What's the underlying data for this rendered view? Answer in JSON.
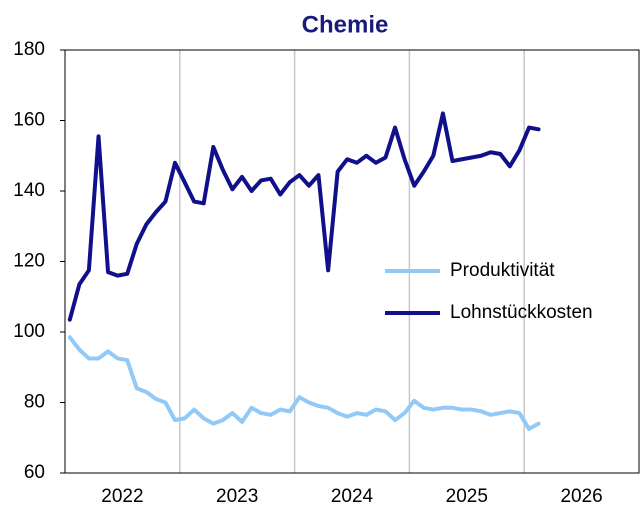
{
  "chart_data": {
    "type": "line",
    "title": "Chemie",
    "x": [
      2022.042,
      2022.125,
      2022.208,
      2022.292,
      2022.375,
      2022.458,
      2022.542,
      2022.625,
      2022.708,
      2022.792,
      2022.875,
      2022.958,
      2023.042,
      2023.125,
      2023.208,
      2023.292,
      2023.375,
      2023.458,
      2023.542,
      2023.625,
      2023.708,
      2023.792,
      2023.875,
      2023.958,
      2024.042,
      2024.125,
      2024.208,
      2024.292,
      2024.375,
      2024.458,
      2024.542,
      2024.625,
      2024.708,
      2024.792,
      2024.875,
      2024.958,
      2025.042,
      2025.125,
      2025.208,
      2025.292,
      2025.375,
      2025.458,
      2025.542,
      2025.625,
      2025.708,
      2025.792,
      2025.875,
      2025.958,
      2026.042,
      2026.125
    ],
    "series": [
      {
        "name": "Produktivität",
        "color": "#93c9f7",
        "values": [
          98.5,
          95,
          92.5,
          92.5,
          94.5,
          92.5,
          92,
          84,
          83,
          81,
          80,
          75,
          75.5,
          78,
          75.5,
          74,
          75,
          77,
          74.5,
          78.5,
          77,
          76.5,
          78,
          77.5,
          81.5,
          80,
          79,
          78.5,
          77,
          76,
          77,
          76.5,
          78,
          77.5,
          75,
          77,
          80.5,
          78.5,
          78,
          78.5,
          78.5,
          78,
          78,
          77.5,
          76.5,
          77,
          77.5,
          77,
          72.5,
          74
        ]
      },
      {
        "name": "Lohnstückkosten",
        "color": "#10108a",
        "values": [
          103.5,
          113.5,
          117.5,
          155.5,
          117,
          116,
          116.5,
          125,
          130.5,
          134,
          137,
          148,
          142.5,
          137,
          136.5,
          152.5,
          146,
          140.5,
          144,
          140,
          143,
          143.5,
          139,
          142.5,
          144.5,
          141.5,
          144.5,
          117.5,
          145.5,
          149,
          148,
          150,
          148,
          149.5,
          158,
          149,
          141.5,
          145.5,
          150,
          162,
          148.5,
          149,
          149.5,
          150,
          151,
          150.5,
          147,
          151.5,
          158,
          157.5
        ]
      }
    ],
    "xlim": [
      2022,
      2027
    ],
    "xticks": [
      {
        "value": 2022.5,
        "label": "2022"
      },
      {
        "value": 2023.5,
        "label": "2023"
      },
      {
        "value": 2024.5,
        "label": "2024"
      },
      {
        "value": 2025.5,
        "label": "2025"
      },
      {
        "value": 2026.5,
        "label": "2026"
      }
    ],
    "xgrid": [
      2023,
      2024,
      2025,
      2026
    ],
    "ylim": [
      60,
      180
    ],
    "yticks": [
      60,
      80,
      100,
      120,
      140,
      160,
      180
    ]
  }
}
